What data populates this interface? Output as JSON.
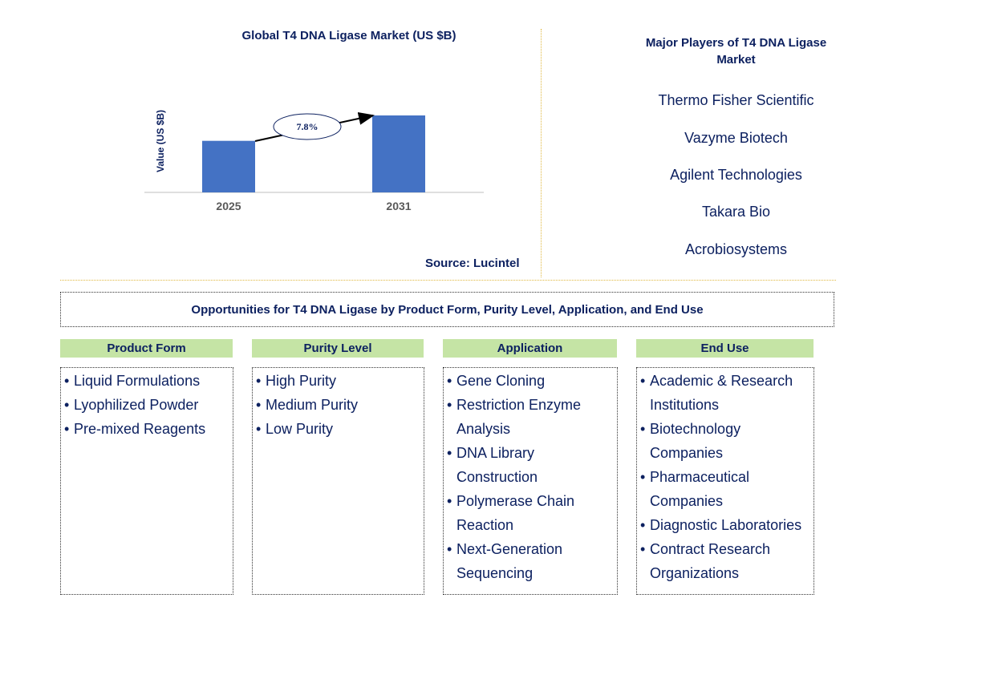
{
  "chart_data": {
    "type": "bar",
    "title": "Global T4 DNA Ligase Market (US $B)",
    "categories": [
      "2025",
      "2031"
    ],
    "values": [
      0.67,
      1.0
    ],
    "ylabel": "Value (US $B)",
    "xlabel": "",
    "annotations": [
      {
        "text": "7.8%",
        "type": "cagr-arrow",
        "from": "2025",
        "to": "2031"
      }
    ],
    "bar_color": "#4472c4",
    "grid": false,
    "source": "Source: Lucintel"
  },
  "players": {
    "title": "Major Players of T4 DNA Ligase Market",
    "items": [
      "Thermo Fisher Scientific",
      "Vazyme Biotech",
      "Agilent Technologies",
      "Takara Bio",
      "Acrobiosystems"
    ]
  },
  "opportunities": {
    "title": "Opportunities for T4 DNA Ligase by Product Form, Purity Level, Application, and End Use",
    "header_color": "#c5e4a5",
    "categories": [
      {
        "header": "Product Form",
        "items": [
          "Liquid Formulations",
          "Lyophilized Powder",
          "Pre-mixed Reagents"
        ]
      },
      {
        "header": "Purity Level",
        "items": [
          "High Purity",
          "Medium Purity",
          "Low Purity"
        ]
      },
      {
        "header": "Application",
        "items": [
          "Gene Cloning",
          "Restriction Enzyme Analysis",
          "DNA Library Construction",
          "Polymerase Chain Reaction",
          "Next-Generation Sequencing"
        ]
      },
      {
        "header": "End Use",
        "items": [
          "Academic & Research Institutions",
          "Biotechnology Companies",
          "Pharmaceutical Companies",
          "Diagnostic Laboratories",
          "Contract Research Organizations"
        ]
      }
    ]
  }
}
